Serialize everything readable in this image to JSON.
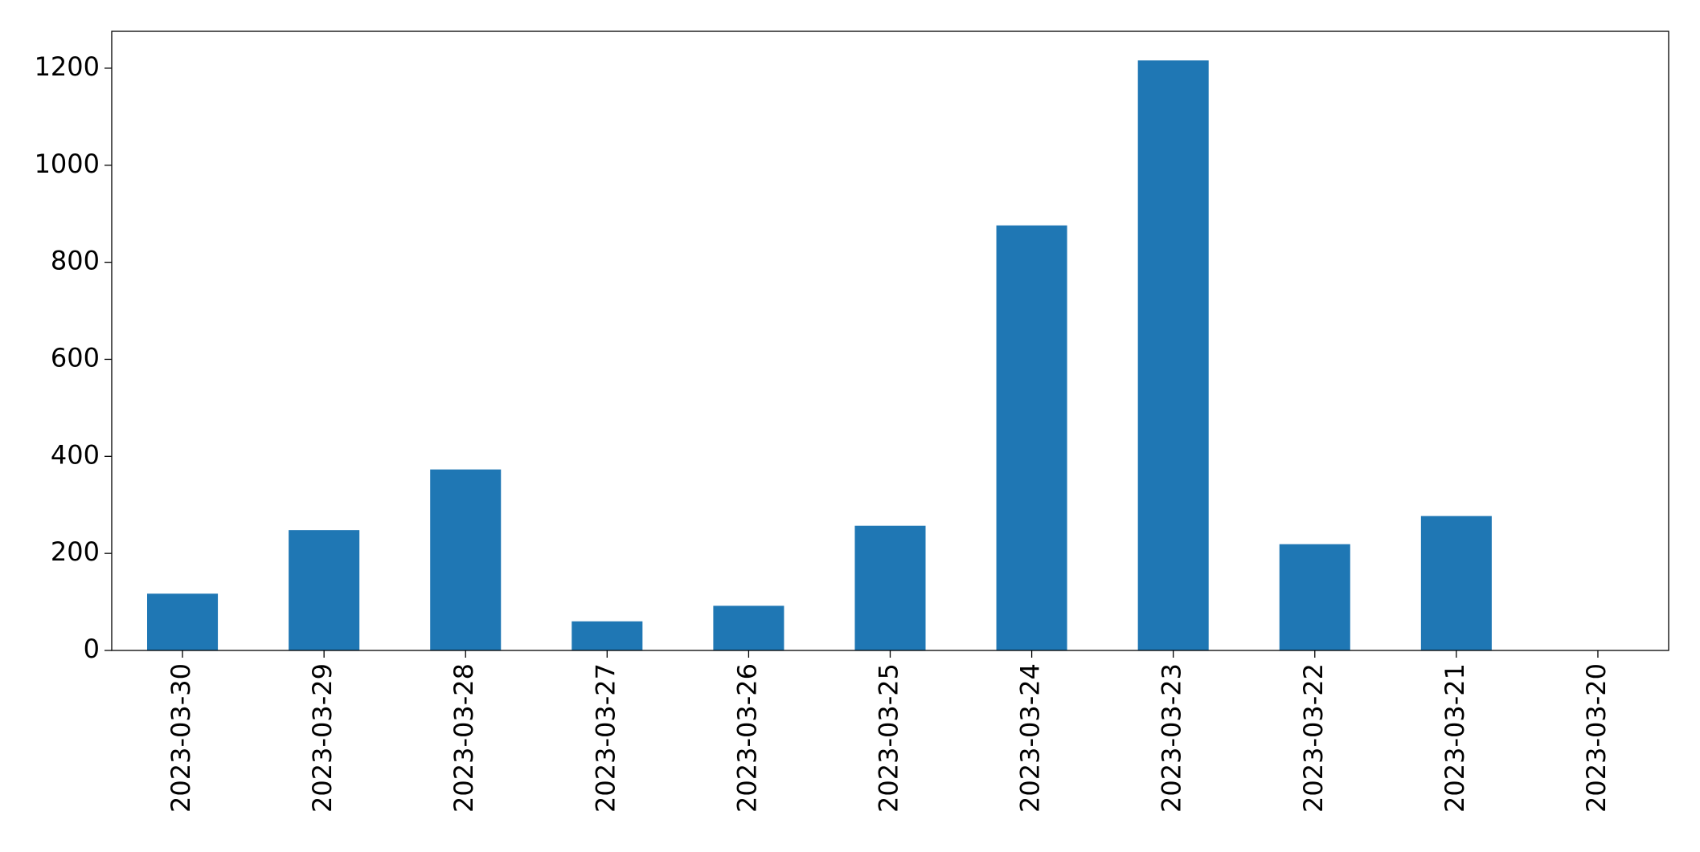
{
  "chart_data": {
    "type": "bar",
    "categories": [
      "2023-03-30",
      "2023-03-29",
      "2023-03-28",
      "2023-03-27",
      "2023-03-26",
      "2023-03-25",
      "2023-03-24",
      "2023-03-23",
      "2023-03-22",
      "2023-03-21",
      "2023-03-20"
    ],
    "values": [
      117,
      248,
      373,
      60,
      92,
      257,
      876,
      1216,
      219,
      277,
      0
    ],
    "color": "#1f77b4",
    "ylim": [
      0,
      1276
    ],
    "yticks": [
      0,
      200,
      400,
      600,
      800,
      1000,
      1200
    ],
    "grid": false
  }
}
